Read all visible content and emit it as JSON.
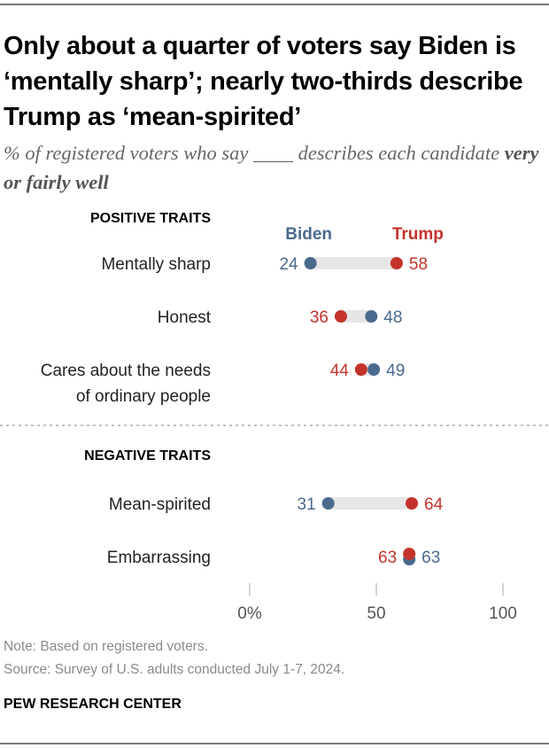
{
  "title": "Only about a quarter of voters say Biden is ‘mentally sharp’; nearly two-thirds describe Trump as ‘mean-spirited’",
  "subtitle_plain": "% of registered voters who say ____ describes each candidate ",
  "subtitle_bold": "very or fairly well",
  "colors": {
    "biden": "#4a6a8e",
    "trump": "#c4332b",
    "bar": "#e6e6e6",
    "tick": "#aaaaaa"
  },
  "chart_data": {
    "type": "dot",
    "title": "Only about a quarter of voters say Biden is ‘mentally sharp’; nearly two-thirds describe Trump as ‘mean-spirited’",
    "subtitle": "% of registered voters who say ____ describes each candidate very or fairly well",
    "legend": [
      {
        "name": "Biden",
        "color": "#4a6a8e"
      },
      {
        "name": "Trump",
        "color": "#c4332b"
      }
    ],
    "legend_placement": "top",
    "xlim": [
      0,
      100
    ],
    "x_ticks": [
      0,
      50,
      100
    ],
    "x_tick_labels": [
      "0%",
      "50",
      "100"
    ],
    "grid": false,
    "sections": [
      {
        "label": "POSITIVE TRAITS",
        "rows": [
          {
            "label": [
              "Mentally sharp"
            ],
            "biden": 24,
            "trump": 58
          },
          {
            "label": [
              "Honest"
            ],
            "biden": 48,
            "trump": 36
          },
          {
            "label": [
              "Cares about the needs",
              "of ordinary people"
            ],
            "biden": 49,
            "trump": 44
          }
        ]
      },
      {
        "label": "NEGATIVE TRAITS",
        "rows": [
          {
            "label": [
              "Mean-spirited"
            ],
            "biden": 31,
            "trump": 64
          },
          {
            "label": [
              "Embarrassing"
            ],
            "biden": 63,
            "trump": 63
          }
        ]
      }
    ]
  },
  "notes": {
    "note": "Note: Based on registered voters.",
    "source": "Source: Survey of U.S. adults conducted July 1-7, 2024."
  },
  "brand": "PEW RESEARCH CENTER"
}
